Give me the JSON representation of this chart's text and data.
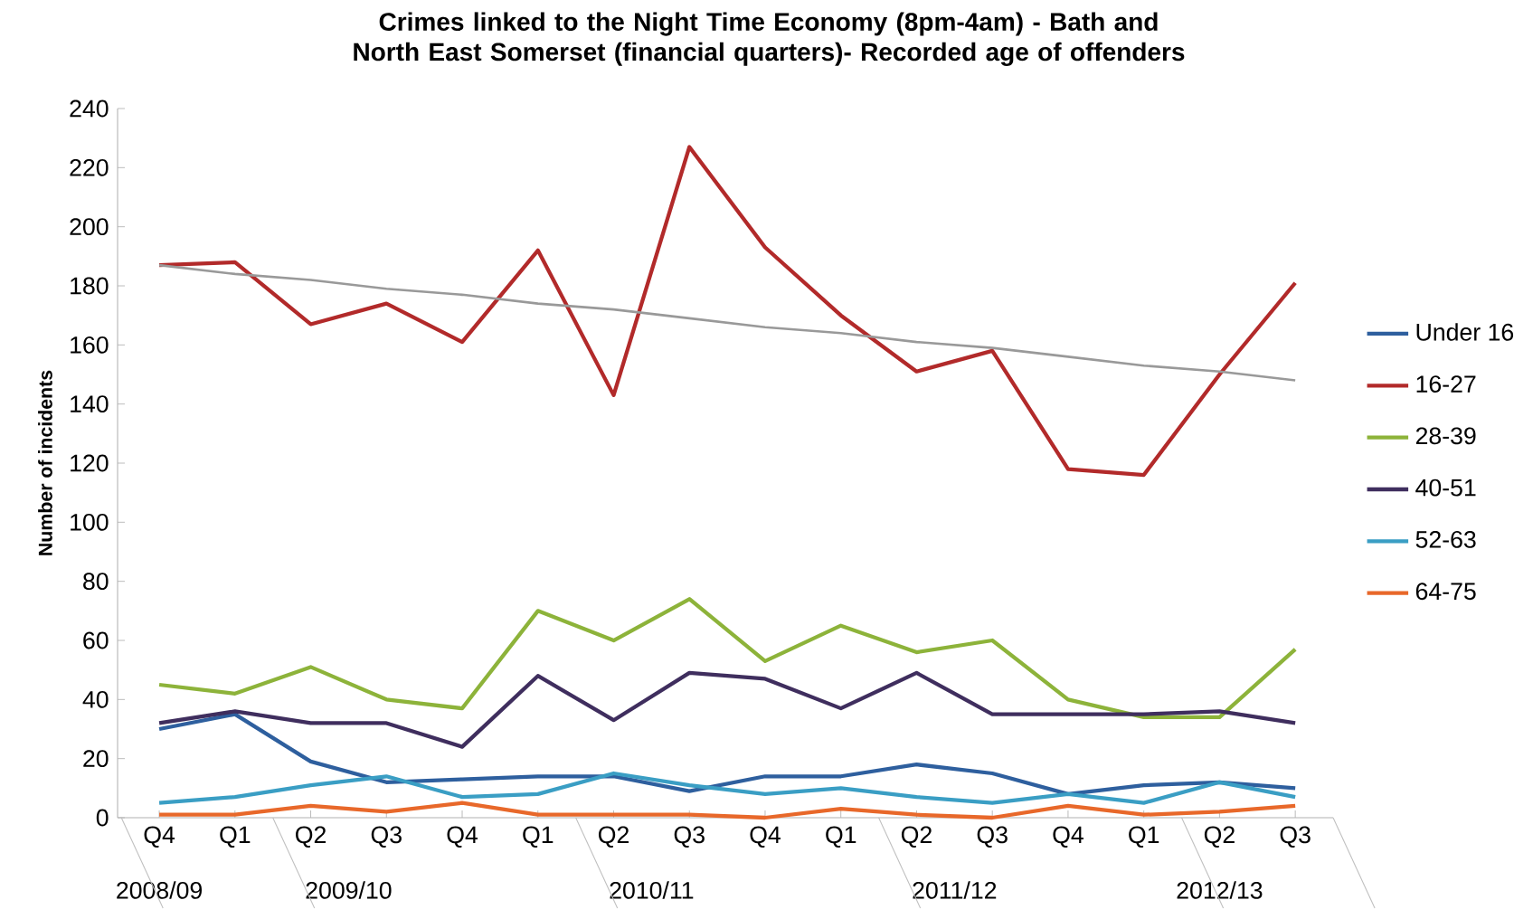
{
  "chart_data": {
    "type": "line",
    "title": "Crimes linked to the Night Time Economy (8pm-4am) - Bath and North East Somerset (financial quarters)- Recorded age of offenders",
    "ylabel": "Number of incidents",
    "categories": [
      "Q4",
      "Q1",
      "Q2",
      "Q3",
      "Q4",
      "Q1",
      "Q2",
      "Q3",
      "Q4",
      "Q1",
      "Q2",
      "Q3",
      "Q4",
      "Q1",
      "Q2",
      "Q3"
    ],
    "annotations": [
      "2008/09",
      "2009/10",
      "2010/11",
      "2011/12",
      "2012/13"
    ],
    "ylim": [
      0,
      240
    ],
    "yticks": [
      0,
      20,
      40,
      60,
      80,
      100,
      120,
      140,
      160,
      180,
      200,
      220,
      240
    ],
    "legend": "right",
    "marker": "none",
    "line_style": "solid",
    "series": [
      {
        "name": "Under 16",
        "color": "#2e5f9e",
        "values": [
          30,
          35,
          19,
          12,
          13,
          14,
          14,
          9,
          14,
          14,
          18,
          15,
          8,
          11,
          12,
          10
        ]
      },
      {
        "name": "16-27",
        "color": "#b22a2a",
        "values": [
          187,
          188,
          167,
          174,
          161,
          192,
          143,
          227,
          193,
          170,
          151,
          158,
          118,
          116,
          150,
          181
        ]
      },
      {
        "name": "28-39",
        "color": "#8db33a",
        "values": [
          45,
          42,
          51,
          40,
          37,
          70,
          60,
          74,
          53,
          65,
          56,
          60,
          40,
          34,
          34,
          57
        ]
      },
      {
        "name": "40-51",
        "color": "#3f2e5e",
        "values": [
          32,
          36,
          32,
          32,
          24,
          48,
          33,
          49,
          47,
          37,
          49,
          35,
          35,
          35,
          36,
          32
        ]
      },
      {
        "name": "52-63",
        "color": "#3a9ec4",
        "values": [
          5,
          7,
          11,
          14,
          7,
          8,
          15,
          11,
          8,
          10,
          7,
          5,
          8,
          5,
          12,
          7
        ]
      },
      {
        "name": "64-75",
        "color": "#e8682a",
        "values": [
          1,
          1,
          4,
          2,
          5,
          1,
          1,
          1,
          0,
          3,
          1,
          0,
          4,
          1,
          2,
          4
        ]
      },
      {
        "color": "#999999",
        "values": [
          187,
          184,
          182,
          179,
          177,
          174,
          172,
          169,
          166,
          164,
          161,
          159,
          156,
          153,
          151,
          148
        ]
      }
    ]
  }
}
